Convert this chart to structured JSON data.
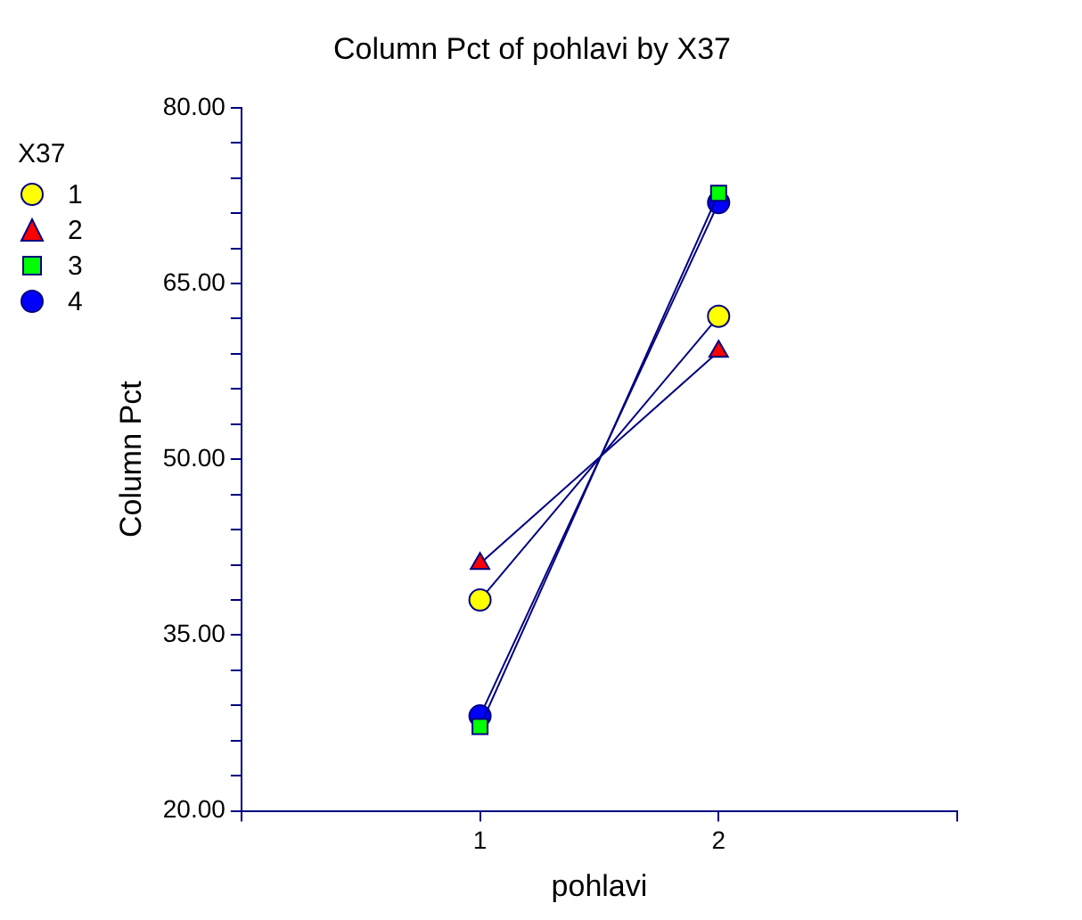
{
  "chart_data": {
    "type": "line",
    "title": "Column Pct of pohlavi by X37",
    "xlabel": "pohlavi",
    "ylabel": "Column Pct",
    "legend_title": "X37",
    "legend": "left",
    "x": [
      1,
      2
    ],
    "xlim": [
      0,
      3
    ],
    "xticks": [
      {
        "value": 0,
        "label": null
      },
      1,
      2,
      {
        "value": 3,
        "label": null
      }
    ],
    "ylim": [
      20,
      80
    ],
    "yticks": [
      {
        "value": 20,
        "label": "20.00"
      },
      {
        "value": 23,
        "label": null
      },
      {
        "value": 26,
        "label": null
      },
      {
        "value": 29,
        "label": null
      },
      {
        "value": 32,
        "label": null
      },
      {
        "value": 35,
        "label": "35.00"
      },
      {
        "value": 38,
        "label": null
      },
      {
        "value": 41,
        "label": null
      },
      {
        "value": 44,
        "label": null
      },
      {
        "value": 47,
        "label": null
      },
      {
        "value": 50,
        "label": "50.00"
      },
      {
        "value": 53,
        "label": null
      },
      {
        "value": 56,
        "label": null
      },
      {
        "value": 59,
        "label": null
      },
      {
        "value": 62,
        "label": null
      },
      {
        "value": 65,
        "label": "65.00"
      },
      {
        "value": 68,
        "label": null
      },
      {
        "value": 71,
        "label": null
      },
      {
        "value": 74,
        "label": null
      },
      {
        "value": 77,
        "label": null
      },
      {
        "value": 80,
        "label": "80.00"
      }
    ],
    "grid": false,
    "series": [
      {
        "name": "1",
        "color": "#ffff00",
        "marker": "circle",
        "values": [
          38.0,
          62.2
        ]
      },
      {
        "name": "2",
        "color": "#ff0000",
        "marker": "triangle",
        "values": [
          41.1,
          59.2
        ]
      },
      {
        "name": "3",
        "color": "#00ff00",
        "marker": "square",
        "values": [
          27.2,
          72.7
        ]
      },
      {
        "name": "4",
        "color": "#0000ff",
        "marker": "circle",
        "values": [
          28.1,
          71.9
        ]
      }
    ]
  }
}
